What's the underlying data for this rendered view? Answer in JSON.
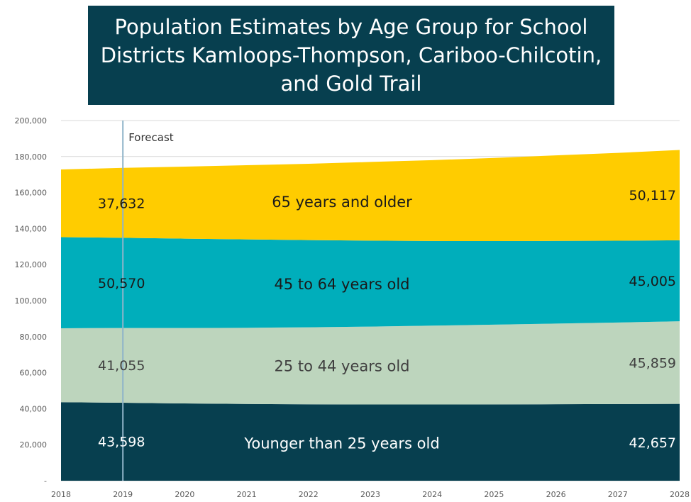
{
  "chart_data": {
    "type": "area",
    "stacked": true,
    "title": "Population Estimates by Age Group for School Districts Kamloops-Thompson, Cariboo-Chilcotin, and Gold Trail",
    "x": [
      "2018",
      "2019",
      "2020",
      "2021",
      "2022",
      "2023",
      "2024",
      "2025",
      "2026",
      "2027",
      "2028"
    ],
    "ylim": [
      0,
      200000
    ],
    "yticks": [
      "-",
      "20,000",
      "40,000",
      "60,000",
      "80,000",
      "100,000",
      "120,000",
      "140,000",
      "160,000",
      "180,000",
      "200,000"
    ],
    "grid": true,
    "legend": "none",
    "annotation": {
      "label": "Forecast",
      "x": "2019"
    },
    "series": [
      {
        "name": "Younger than 25 years old",
        "color": "#073f4f",
        "text_color": "#ffffff",
        "values": [
          43598,
          43300,
          42900,
          42600,
          42400,
          42300,
          42300,
          42350,
          42450,
          42550,
          42657
        ],
        "start_label": "43,598",
        "end_label": "42,657"
      },
      {
        "name": "25 to 44 years old",
        "color": "#bdd5bd",
        "text_color": "#404040",
        "values": [
          41055,
          41500,
          41900,
          42300,
          42800,
          43300,
          43800,
          44300,
          44800,
          45300,
          45859
        ],
        "start_label": "41,055",
        "end_label": "45,859"
      },
      {
        "name": "45 to 64 years old",
        "color": "#00aebb",
        "text_color": "#1a1a1a",
        "values": [
          50570,
          50100,
          49600,
          49100,
          48400,
          47700,
          47000,
          46400,
          45900,
          45400,
          45005
        ],
        "start_label": "50,570",
        "end_label": "45,005"
      },
      {
        "name": "65 years and older",
        "color": "#ffcc00",
        "text_color": "#1a1a1a",
        "values": [
          37632,
          38800,
          40000,
          41200,
          42400,
          43700,
          44900,
          46200,
          47500,
          48800,
          50117
        ],
        "start_label": "37,632",
        "end_label": "50,117"
      }
    ]
  }
}
